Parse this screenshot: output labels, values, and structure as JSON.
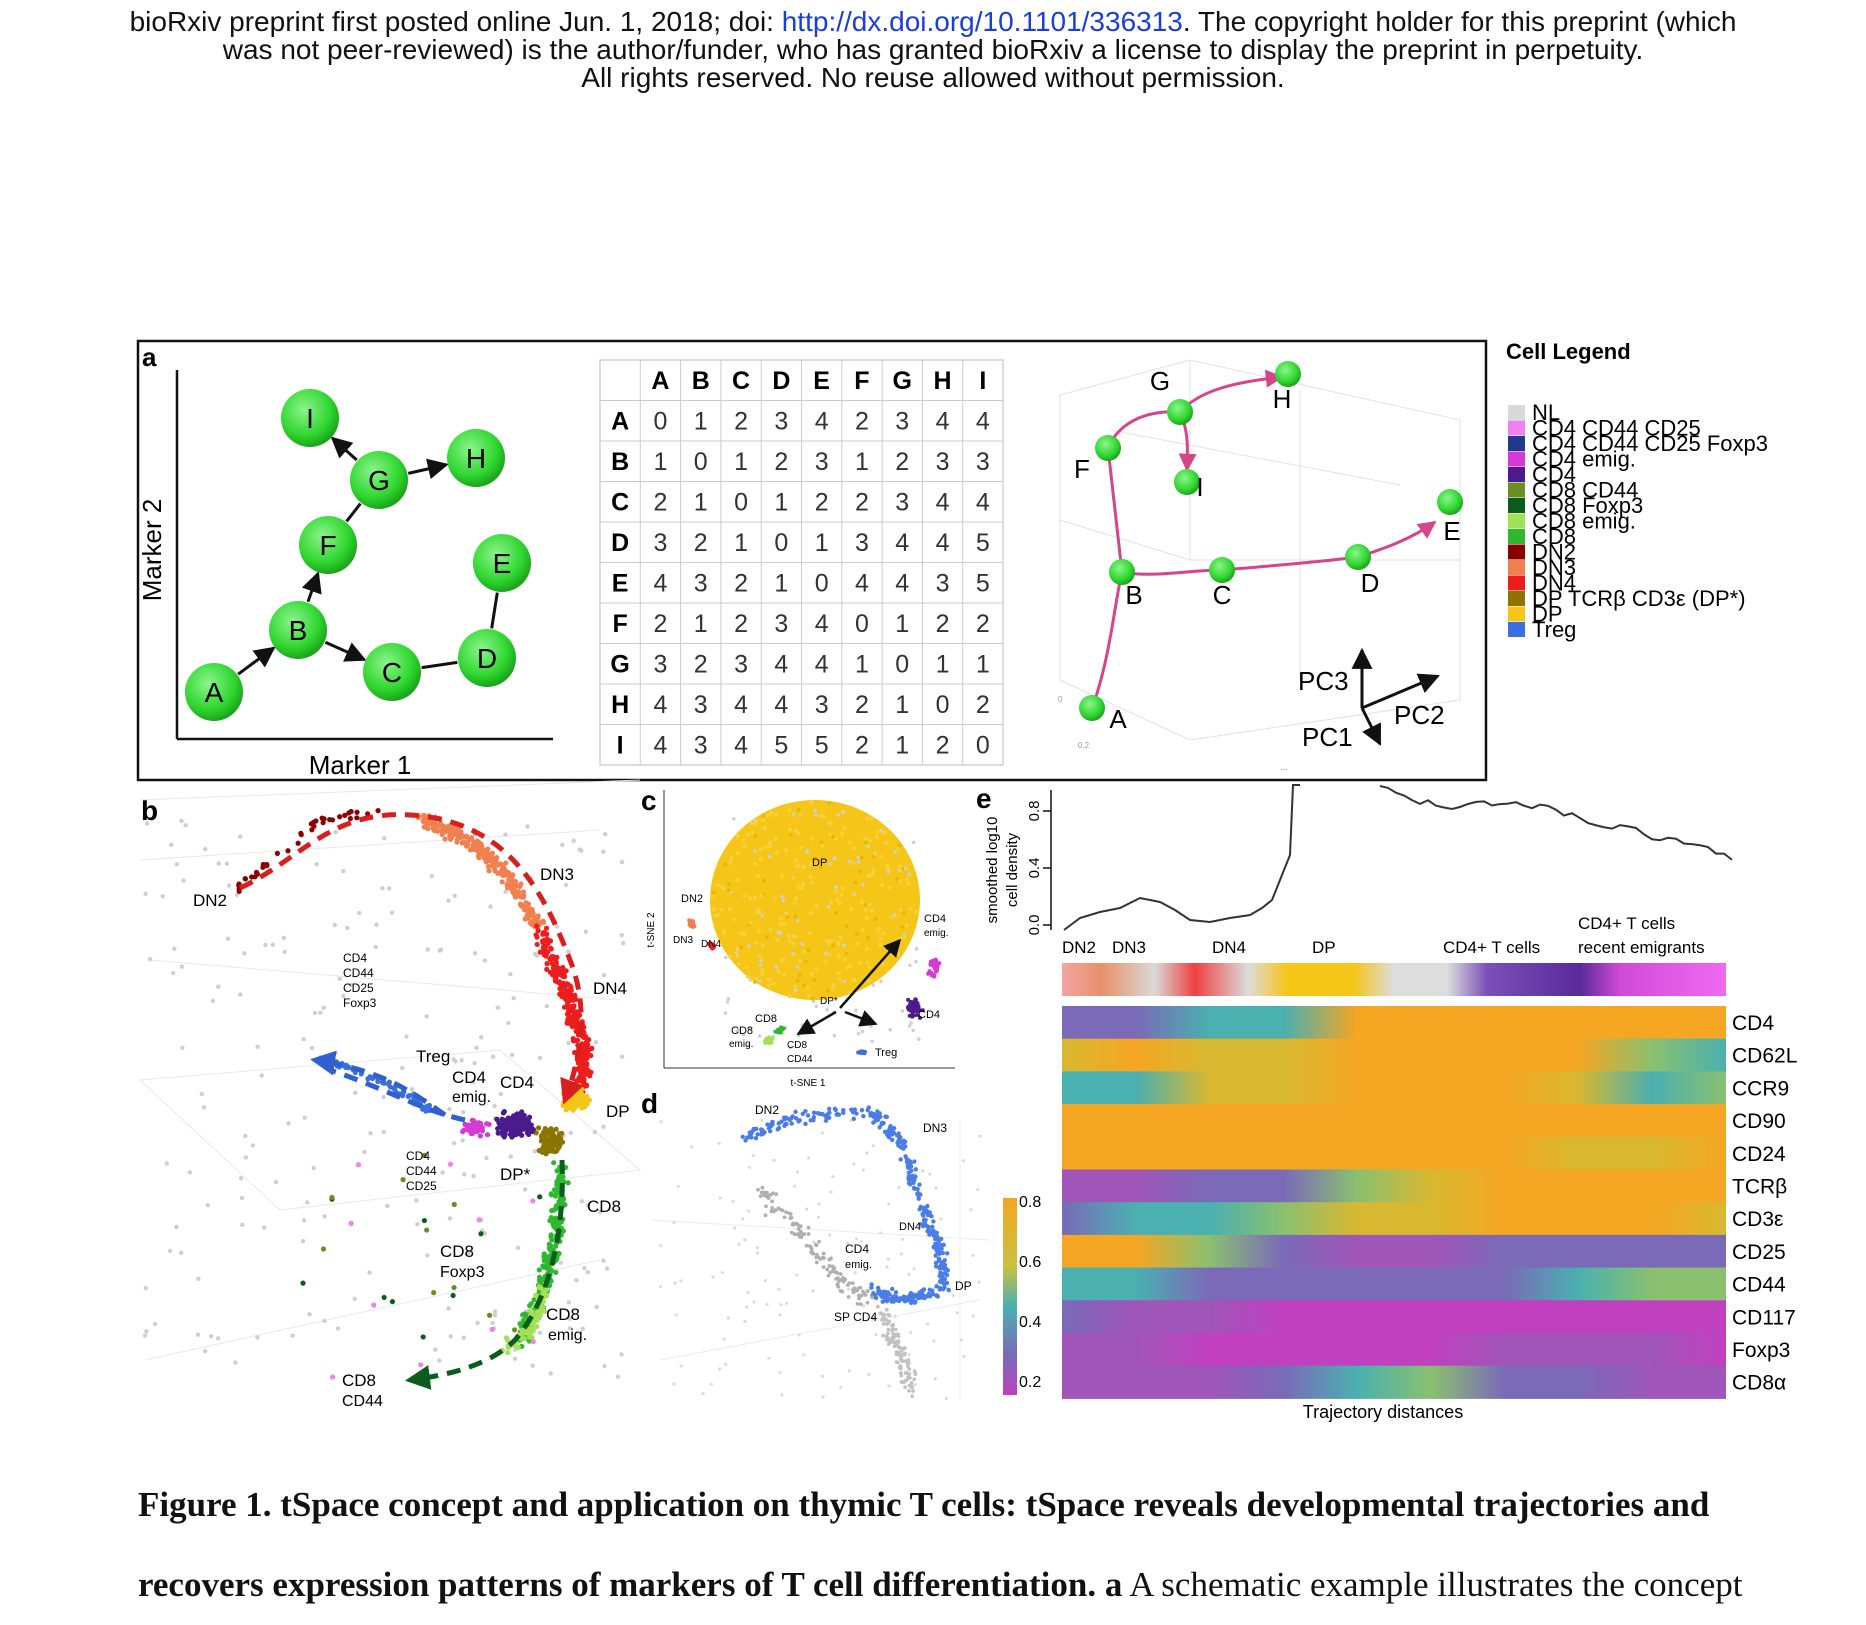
{
  "header": {
    "line1_pre": "bioRxiv preprint first posted online Jun. 1, 2018; doi: ",
    "line1_link": "http://dx.doi.org/10.1101/336313",
    "line1_post": ". The copyright holder for this preprint (which",
    "line2": "was not peer-reviewed) is the author/funder, who has granted bioRxiv a license to display the preprint in perpetuity.",
    "line3": "All rights reserved. No reuse allowed without permission."
  },
  "panel_a": {
    "letter": "a",
    "graph": {
      "xlabel": "Marker 1",
      "ylabel": "Marker 2",
      "nodes": [
        "A",
        "B",
        "C",
        "D",
        "E",
        "F",
        "G",
        "H",
        "I"
      ]
    },
    "matrix": {
      "headers": [
        "A",
        "B",
        "C",
        "D",
        "E",
        "F",
        "G",
        "H",
        "I"
      ],
      "rows": [
        [
          "0",
          "1",
          "2",
          "3",
          "4",
          "2",
          "3",
          "4",
          "4"
        ],
        [
          "1",
          "0",
          "1",
          "2",
          "3",
          "1",
          "2",
          "3",
          "3"
        ],
        [
          "2",
          "1",
          "0",
          "1",
          "2",
          "2",
          "3",
          "4",
          "4"
        ],
        [
          "3",
          "2",
          "1",
          "0",
          "1",
          "3",
          "4",
          "4",
          "5"
        ],
        [
          "4",
          "3",
          "2",
          "1",
          "0",
          "4",
          "4",
          "3",
          "5"
        ],
        [
          "2",
          "1",
          "2",
          "3",
          "4",
          "0",
          "1",
          "2",
          "2"
        ],
        [
          "3",
          "2",
          "3",
          "4",
          "4",
          "1",
          "0",
          "1",
          "1"
        ],
        [
          "4",
          "3",
          "4",
          "4",
          "3",
          "2",
          "1",
          "0",
          "2"
        ],
        [
          "4",
          "3",
          "4",
          "5",
          "5",
          "2",
          "1",
          "2",
          "0"
        ]
      ]
    },
    "pca": {
      "nodes": [
        "A",
        "B",
        "C",
        "D",
        "E",
        "F",
        "G",
        "H",
        "I"
      ],
      "axes": [
        "PC1",
        "PC2",
        "PC3"
      ],
      "faint": [
        "0",
        "0.2",
        "...",
        "..."
      ]
    }
  },
  "cell_legend": {
    "title": "Cell Legend",
    "items": [
      {
        "label": "NL",
        "color": "#d9d9d9"
      },
      {
        "label": "CD4 CD44 CD25",
        "color": "#ee82ee"
      },
      {
        "label": "CD4 CD44 CD25 Foxp3",
        "color": "#1f3a8a"
      },
      {
        "label": "CD4 emig.",
        "color": "#d63ad6"
      },
      {
        "label": "CD4",
        "color": "#4b1a8c"
      },
      {
        "label": "CD8 CD44",
        "color": "#6b8e23"
      },
      {
        "label": "CD8 Foxp3",
        "color": "#0b5d1e"
      },
      {
        "label": "CD8 emig.",
        "color": "#a3e05a"
      },
      {
        "label": "CD8",
        "color": "#2fb82f"
      },
      {
        "label": "DN2",
        "color": "#8b0000"
      },
      {
        "label": "DN3",
        "color": "#f08050"
      },
      {
        "label": "DN4",
        "color": "#ee1c1c"
      },
      {
        "label": "DP TCRβ CD3ε (DP*)",
        "color": "#8b7500"
      },
      {
        "label": "DP",
        "color": "#f5c518"
      },
      {
        "label": "Treg",
        "color": "#3b6fe0"
      }
    ]
  },
  "panel_b": {
    "letter": "b",
    "labels": [
      "DN2",
      "DN3",
      "DN4",
      "CD4",
      "CD44",
      "CD25",
      "Foxp3",
      "Treg",
      "CD4",
      "emig.",
      "CD4",
      "DP",
      "CD4",
      "CD44",
      "CD25",
      "DP*",
      "CD8",
      "CD8",
      "Foxp3",
      "CD8",
      "emig.",
      "CD8",
      "CD44"
    ]
  },
  "panel_c": {
    "letter": "c",
    "labels": [
      "DP",
      "DN2",
      "DN3",
      "DN4",
      "CD4",
      "emig.",
      "CD4",
      "DP*",
      "CD8",
      "CD8",
      "emig.",
      "CD8",
      "CD44",
      "Treg"
    ],
    "xlabel": "t-SNE 1",
    "ylabel": "t-SNE 2"
  },
  "panel_d": {
    "letter": "d",
    "labels": [
      "DN2",
      "DN3",
      "DN4",
      "CD4",
      "emig.",
      "DP",
      "SP CD4"
    ]
  },
  "panel_e": {
    "letter": "e",
    "density_ylabel_1": "smoothed log10",
    "density_ylabel_2": "cell density",
    "density_ticks": [
      "0.0",
      "0.4",
      "0.8"
    ],
    "stage_labels": [
      "DN2",
      "DN3",
      "DN4",
      "DP",
      "CD4+ T cells",
      "CD4+ T cells",
      "recent emigrants"
    ],
    "markers": [
      "CD4",
      "CD62L",
      "CCR9",
      "CD90",
      "CD24",
      "TCRβ",
      "CD3ε",
      "CD25",
      "CD44",
      "CD117",
      "Foxp3",
      "CD8α"
    ],
    "colorbar_ticks": [
      "0.8",
      "0.6",
      "0.4",
      "0.2"
    ],
    "xlabel": "Trajectory distances"
  },
  "caption": {
    "bold": "Figure 1. tSpace concept and application on thymic T cells: tSpace reveals developmental trajectories and recovers expression patterns of markers of T cell differentiation.",
    "bold_letter": "a",
    "rest": "A schematic example illustrates the concept"
  }
}
